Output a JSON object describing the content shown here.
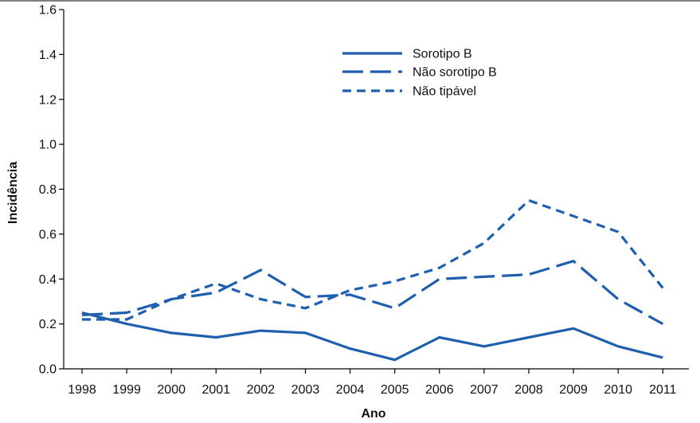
{
  "chart_data": {
    "type": "line",
    "xlabel": "Ano",
    "ylabel": "Incidência",
    "x": [
      1998,
      1999,
      2000,
      2001,
      2002,
      2003,
      2004,
      2005,
      2006,
      2007,
      2008,
      2009,
      2010,
      2011
    ],
    "x_tick_labels": [
      "1998",
      "1999",
      "2000",
      "2001",
      "2002",
      "2003",
      "2004",
      "2005",
      "2006",
      "2007",
      "2008",
      "2009",
      "2010",
      "2011"
    ],
    "ylim": [
      0,
      1.6
    ],
    "y_ticks": [
      0.0,
      0.2,
      0.4,
      0.6,
      0.8,
      1.0,
      1.2,
      1.4,
      1.6
    ],
    "y_tick_labels": [
      "0.0",
      "0.2",
      "0.4",
      "0.6",
      "0.8",
      "1.0",
      "1.2",
      "1.4",
      "1.6"
    ],
    "grid": false,
    "legend_position": "top-center",
    "color": "#1f5fad",
    "series": [
      {
        "name": "Sorotipo B",
        "dash": "solid",
        "values": [
          0.25,
          0.2,
          0.16,
          0.14,
          0.17,
          0.16,
          0.09,
          0.04,
          0.14,
          0.1,
          0.14,
          0.18,
          0.1,
          0.05
        ]
      },
      {
        "name": "Não sorotipo B",
        "dash": "long-dash",
        "values": [
          0.24,
          0.25,
          0.31,
          0.34,
          0.44,
          0.32,
          0.33,
          0.27,
          0.4,
          0.41,
          0.42,
          0.48,
          0.31,
          0.2
        ]
      },
      {
        "name": "Não tipável",
        "dash": "short-dash",
        "values": [
          0.22,
          0.22,
          0.31,
          0.38,
          0.31,
          0.27,
          0.35,
          0.39,
          0.45,
          0.56,
          0.75,
          0.68,
          0.61,
          0.36
        ]
      }
    ]
  }
}
